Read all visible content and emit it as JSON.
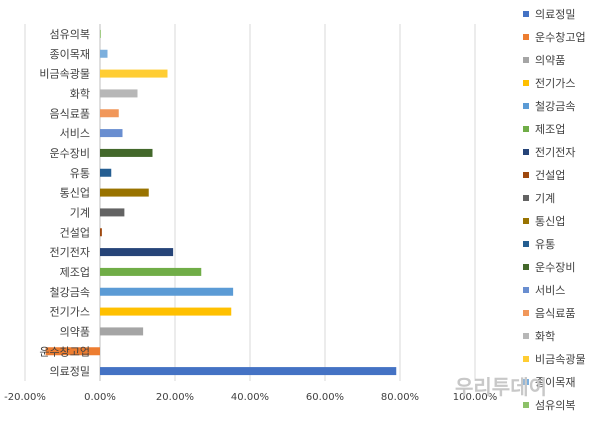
{
  "chart_data": {
    "type": "bar",
    "orientation": "horizontal",
    "title": "",
    "xlabel": "",
    "ylabel": "",
    "xlim": [
      -0.2,
      1.0
    ],
    "x_ticks": [
      -0.2,
      0.0,
      0.2,
      0.4,
      0.6,
      0.8,
      1.0
    ],
    "x_tick_labels": [
      "-20.00%",
      "0.00%",
      "20.00%",
      "40.00%",
      "60.00%",
      "80.00%",
      "100.00%"
    ],
    "grid": "vertical",
    "legend_position": "right",
    "categories": [
      "의료정밀",
      "운수창고업",
      "의약품",
      "전기가스",
      "철강금속",
      "제조업",
      "전기전자",
      "건설업",
      "기계",
      "통신업",
      "유통",
      "운수장비",
      "서비스",
      "음식료품",
      "화학",
      "비금속광물",
      "종이목재",
      "섬유의복"
    ],
    "values": [
      0.79,
      -0.145,
      0.115,
      0.35,
      0.355,
      0.27,
      0.195,
      0.005,
      0.065,
      0.13,
      0.03,
      0.14,
      0.06,
      0.05,
      0.1,
      0.18,
      0.02,
      0.0
    ],
    "colors": [
      "#4472C4",
      "#ED7D31",
      "#A5A5A5",
      "#FFC000",
      "#5B9BD5",
      "#70AD47",
      "#264478",
      "#9E480E",
      "#636363",
      "#997300",
      "#255E91",
      "#43682B",
      "#698ED0",
      "#F1975A",
      "#B7B7B7",
      "#FFCD33",
      "#7CAFDD",
      "#8CC168"
    ]
  },
  "watermark": "우리투데이"
}
